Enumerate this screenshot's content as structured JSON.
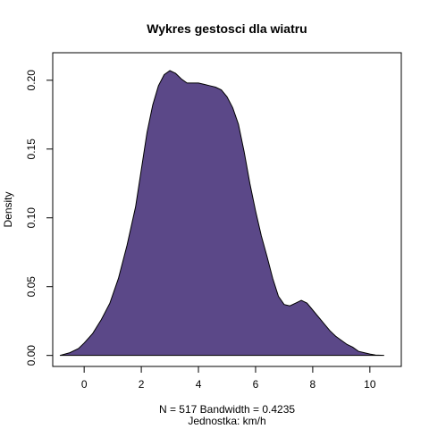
{
  "chart_data": {
    "type": "area",
    "title": "Wykres gestosci dla wiatru",
    "xlabel": "N = 517   Bandwidth = 0.4235",
    "xlabel2": "Jednostka: km/h",
    "ylabel": "Density",
    "xlim": [
      -1.1,
      11.1
    ],
    "ylim": [
      -0.008,
      0.22
    ],
    "x_ticks": [
      "0",
      "2",
      "4",
      "6",
      "8",
      "10"
    ],
    "y_ticks": [
      "0.00",
      "0.05",
      "0.10",
      "0.15",
      "0.20"
    ],
    "fill_color": "#5b4888",
    "line_color": "#000000",
    "grid": false,
    "legend": "none",
    "density": [
      [
        -0.85,
        0.0
      ],
      [
        -0.5,
        0.002
      ],
      [
        -0.2,
        0.005
      ],
      [
        0.0,
        0.009
      ],
      [
        0.3,
        0.016
      ],
      [
        0.6,
        0.026
      ],
      [
        0.9,
        0.038
      ],
      [
        1.2,
        0.056
      ],
      [
        1.5,
        0.08
      ],
      [
        1.8,
        0.108
      ],
      [
        2.0,
        0.135
      ],
      [
        2.2,
        0.162
      ],
      [
        2.4,
        0.182
      ],
      [
        2.6,
        0.196
      ],
      [
        2.8,
        0.204
      ],
      [
        3.0,
        0.207
      ],
      [
        3.2,
        0.205
      ],
      [
        3.4,
        0.201
      ],
      [
        3.6,
        0.198
      ],
      [
        3.8,
        0.198
      ],
      [
        4.0,
        0.198
      ],
      [
        4.2,
        0.197
      ],
      [
        4.4,
        0.196
      ],
      [
        4.6,
        0.195
      ],
      [
        4.8,
        0.193
      ],
      [
        5.0,
        0.188
      ],
      [
        5.2,
        0.18
      ],
      [
        5.4,
        0.168
      ],
      [
        5.6,
        0.148
      ],
      [
        5.8,
        0.125
      ],
      [
        6.0,
        0.105
      ],
      [
        6.2,
        0.087
      ],
      [
        6.4,
        0.072
      ],
      [
        6.6,
        0.056
      ],
      [
        6.8,
        0.043
      ],
      [
        7.0,
        0.037
      ],
      [
        7.2,
        0.036
      ],
      [
        7.4,
        0.038
      ],
      [
        7.6,
        0.04
      ],
      [
        7.8,
        0.038
      ],
      [
        8.0,
        0.033
      ],
      [
        8.2,
        0.028
      ],
      [
        8.4,
        0.023
      ],
      [
        8.6,
        0.018
      ],
      [
        8.8,
        0.014
      ],
      [
        9.0,
        0.011
      ],
      [
        9.2,
        0.008
      ],
      [
        9.4,
        0.006
      ],
      [
        9.6,
        0.003
      ],
      [
        9.8,
        0.002
      ],
      [
        10.0,
        0.001
      ],
      [
        10.2,
        0.0003
      ],
      [
        10.5,
        0.0
      ]
    ]
  }
}
